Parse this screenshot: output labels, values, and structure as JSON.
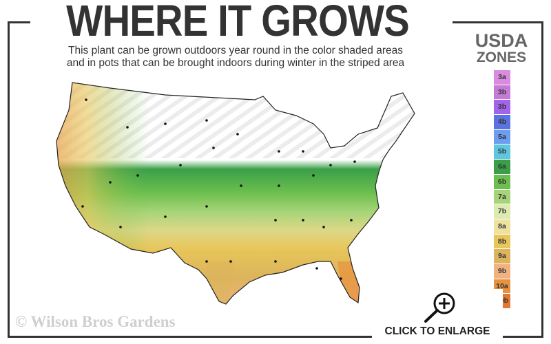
{
  "header": {
    "title": "WHERE IT GROWS",
    "subtitle_line1": "This plant can be grown outdoors year round in the color shaded areas",
    "subtitle_line2": "and in pots that can be brought indoors during winter in the striped area"
  },
  "legend": {
    "title_line1": "USDA",
    "title_line2": "ZONES",
    "zones": [
      {
        "label": "3a",
        "color": "#d98be0"
      },
      {
        "label": "3b",
        "color": "#c47ad6"
      },
      {
        "label": "3b",
        "color": "#a363ea"
      },
      {
        "label": "4b",
        "color": "#5b72e2"
      },
      {
        "label": "5a",
        "color": "#6d9df0"
      },
      {
        "label": "5b",
        "color": "#5ec7e0"
      },
      {
        "label": "6a",
        "color": "#3a9f48"
      },
      {
        "label": "6b",
        "color": "#6cbf4e"
      },
      {
        "label": "7a",
        "color": "#a6d478"
      },
      {
        "label": "7b",
        "color": "#dcebb0"
      },
      {
        "label": "8a",
        "color": "#efe1a0"
      },
      {
        "label": "8b",
        "color": "#e8c65a"
      },
      {
        "label": "9a",
        "color": "#dcb45c"
      },
      {
        "label": "9b",
        "color": "#f1b282"
      },
      {
        "label": "10a",
        "color": "#e8913f"
      },
      {
        "label": "10b",
        "color": "#e07a32"
      }
    ]
  },
  "map": {
    "region": "United States",
    "striped_area": "indoor pots in winter",
    "shaded_zones": [
      "6a",
      "6b",
      "7a",
      "7b",
      "8a",
      "8b",
      "9a",
      "9b",
      "10a",
      "10b"
    ]
  },
  "footer": {
    "watermark": "© Wilson Bros Gardens",
    "enlarge_label": "CLICK TO ENLARGE",
    "enlarge_icon": "zoom-in-icon"
  }
}
